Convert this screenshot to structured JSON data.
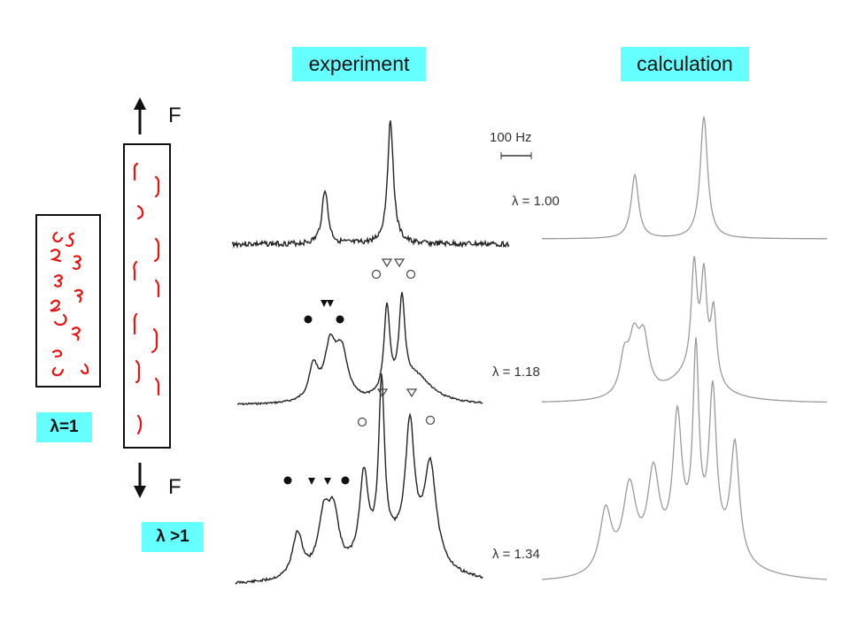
{
  "labels": {
    "experiment": "experiment",
    "calculation": "calculation",
    "lambda_equal": "λ=1",
    "lambda_greater": "λ >1",
    "force_top": "F",
    "force_bottom": "F",
    "scale": "100 Hz"
  },
  "spectra": [
    {
      "lambda_label": "λ = 1.00"
    },
    {
      "lambda_label": "λ = 1.18"
    },
    {
      "lambda_label": "λ = 1.34"
    }
  ],
  "colors": {
    "tag_background": "#66ffff",
    "chain_segments": "#ee1111",
    "experimental_trace": "#222222",
    "calculated_trace": "#9a9a9a"
  },
  "icons": [
    "arrow-up-icon",
    "arrow-down-icon",
    "filled-circle-marker",
    "filled-triangle-marker",
    "open-circle-marker",
    "open-triangle-marker"
  ]
}
